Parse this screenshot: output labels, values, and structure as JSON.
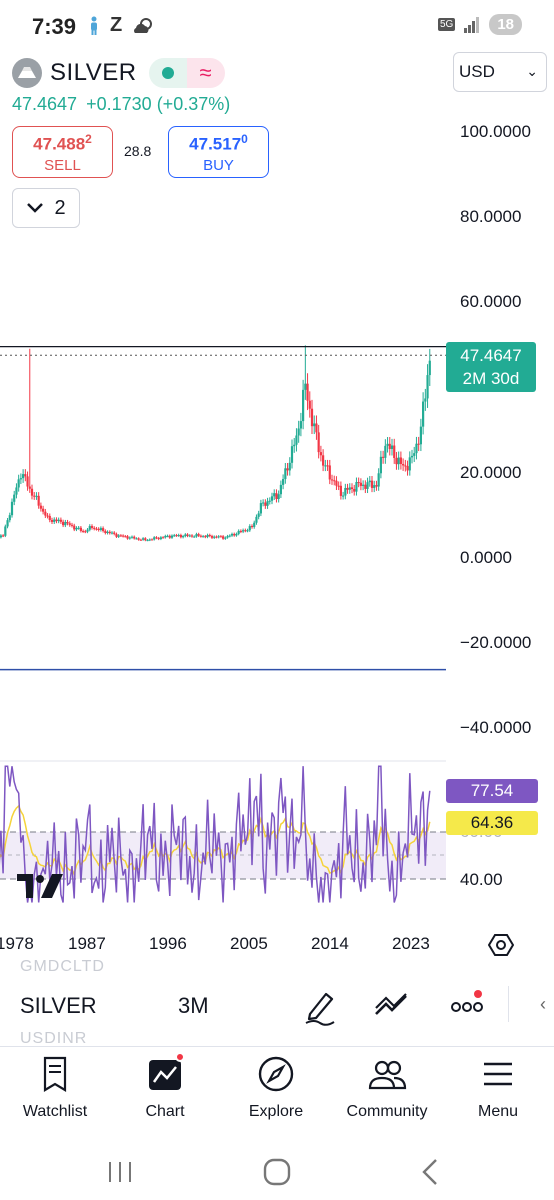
{
  "status_bar": {
    "time": "7:39",
    "left_icons": [
      "person-icon",
      "Z",
      "weather-icon"
    ],
    "network": "5G",
    "battery": "18"
  },
  "header": {
    "symbol": "SILVER",
    "last_price": "47.4647",
    "change": "+0.1730",
    "change_pct": "(+0.37%)",
    "currency": "USD"
  },
  "quote": {
    "sell_price": "47.488",
    "sell_superscript": "2",
    "sell_label": "SELL",
    "spread": "28.8",
    "buy_price": "47.517",
    "buy_superscript": "0",
    "buy_label": "BUY"
  },
  "collapse_count": "2",
  "price_axis": [
    "100.0000",
    "80.0000",
    "60.0000",
    "20.0000",
    "0.0000",
    "−20.0000",
    "−40.0000"
  ],
  "price_tag": {
    "price": "47.4647",
    "countdown": "2M 30d"
  },
  "rsi": {
    "axis_labels": [
      "40.00"
    ],
    "rsi_value": "77.54",
    "ma_value": "64.36"
  },
  "time_axis": [
    "1978",
    "1987",
    "1996",
    "2005",
    "2014",
    "2023"
  ],
  "toolbar": {
    "symbol_ghost_above": "GMDCLTD",
    "symbol": "SILVER",
    "symbol_ghost_below": "USDINR",
    "interval": "3M"
  },
  "bottom_nav": [
    {
      "label": "Watchlist"
    },
    {
      "label": "Chart"
    },
    {
      "label": "Explore"
    },
    {
      "label": "Community"
    },
    {
      "label": "Menu"
    }
  ],
  "colors": {
    "up": "#22ab94",
    "down": "#f23645",
    "sell": "#e05252",
    "buy": "#2962ff",
    "rsi_line": "#7e57c2",
    "rsi_ma": "#f5d33a"
  },
  "chart_data": {
    "type": "candlestick",
    "interval": "3M",
    "y_axis_ticks": [
      100,
      80,
      60,
      40,
      20,
      0,
      -20,
      -40
    ],
    "x_axis_ticks": [
      "1978",
      "1987",
      "1996",
      "2005",
      "2014",
      "2023"
    ],
    "last_price": 47.4647,
    "horizontal_line_price": -26.5,
    "resistance_line_price": 49.5,
    "approx_close_series": [
      {
        "year": 1975,
        "close": 4.5
      },
      {
        "year": 1977,
        "close": 5
      },
      {
        "year": 1979,
        "close": 20
      },
      {
        "year": 1980,
        "close": 16
      },
      {
        "year": 1982,
        "close": 9
      },
      {
        "year": 1984,
        "close": 8
      },
      {
        "year": 1986,
        "close": 6
      },
      {
        "year": 1987,
        "close": 7
      },
      {
        "year": 1990,
        "close": 5
      },
      {
        "year": 1993,
        "close": 4
      },
      {
        "year": 1996,
        "close": 5
      },
      {
        "year": 1999,
        "close": 5
      },
      {
        "year": 2002,
        "close": 4.6
      },
      {
        "year": 2005,
        "close": 7
      },
      {
        "year": 2006,
        "close": 12
      },
      {
        "year": 2008,
        "close": 15
      },
      {
        "year": 2010,
        "close": 28
      },
      {
        "year": 2011,
        "close": 40
      },
      {
        "year": 2012,
        "close": 30
      },
      {
        "year": 2013,
        "close": 22
      },
      {
        "year": 2015,
        "close": 15
      },
      {
        "year": 2017,
        "close": 17
      },
      {
        "year": 2019,
        "close": 17
      },
      {
        "year": 2020,
        "close": 27
      },
      {
        "year": 2021,
        "close": 24
      },
      {
        "year": 2022,
        "close": 21
      },
      {
        "year": 2023,
        "close": 23
      },
      {
        "year": 2024,
        "close": 30
      },
      {
        "year": 2025,
        "close": 47.46
      }
    ],
    "peaks": [
      {
        "year": 1980,
        "high": 49
      },
      {
        "year": 2011,
        "high": 49.8
      }
    ],
    "rsi": {
      "band_upper": 60,
      "band_lower": 40,
      "last_rsi": 77.54,
      "last_ma": 64.36
    }
  }
}
